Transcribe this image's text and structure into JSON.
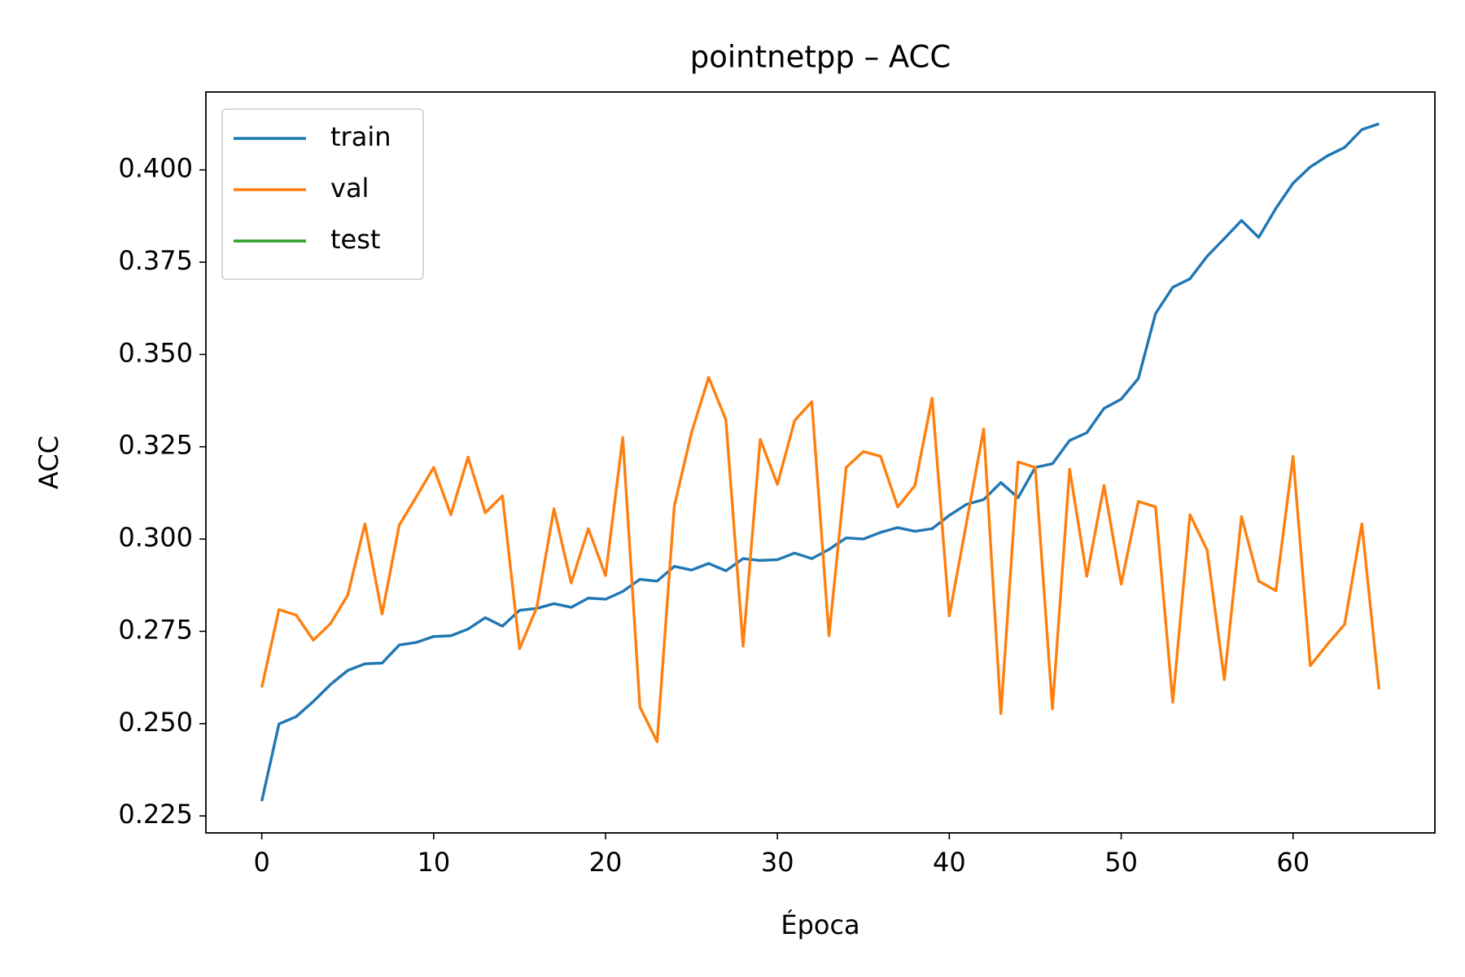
{
  "chart_data": {
    "type": "line",
    "title": "pointnetpp – ACC",
    "x_label": "Época",
    "y_label": "ACC",
    "x": [
      0,
      1,
      2,
      3,
      4,
      5,
      6,
      7,
      8,
      9,
      10,
      11,
      12,
      13,
      14,
      15,
      16,
      17,
      18,
      19,
      20,
      21,
      22,
      23,
      24,
      25,
      26,
      27,
      28,
      29,
      30,
      31,
      32,
      33,
      34,
      35,
      36,
      37,
      38,
      39,
      40,
      41,
      42,
      43,
      44,
      45,
      46,
      47,
      48,
      49,
      50,
      51,
      52,
      53,
      54,
      55,
      56,
      57,
      58,
      59,
      60,
      61,
      62,
      63,
      64,
      65
    ],
    "series": [
      {
        "name": "train",
        "color": "#1f77b4",
        "values": [
          0.229,
          0.2499,
          0.2519,
          0.256,
          0.2606,
          0.2644,
          0.2662,
          0.2664,
          0.2713,
          0.272,
          0.2736,
          0.2738,
          0.2756,
          0.2787,
          0.2764,
          0.2807,
          0.2812,
          0.2825,
          0.2815,
          0.284,
          0.2837,
          0.2858,
          0.2891,
          0.2886,
          0.2926,
          0.2916,
          0.2934,
          0.2914,
          0.2947,
          0.2942,
          0.2944,
          0.2962,
          0.2947,
          0.2972,
          0.3003,
          0.3,
          0.3018,
          0.3031,
          0.3021,
          0.3028,
          0.3064,
          0.3094,
          0.3107,
          0.3153,
          0.3112,
          0.3194,
          0.3204,
          0.3267,
          0.3288,
          0.3354,
          0.3379,
          0.3435,
          0.3611,
          0.3682,
          0.3705,
          0.3766,
          0.3814,
          0.3863,
          0.3817,
          0.3896,
          0.3964,
          0.4008,
          0.4038,
          0.4061,
          0.4109,
          0.4125
        ]
      },
      {
        "name": "val",
        "color": "#ff7f0e",
        "values": [
          0.2598,
          0.2809,
          0.2794,
          0.2726,
          0.2771,
          0.2848,
          0.3041,
          0.2797,
          0.3038,
          0.3115,
          0.3194,
          0.3066,
          0.3222,
          0.3071,
          0.3117,
          0.2703,
          0.2815,
          0.3082,
          0.2881,
          0.3028,
          0.2901,
          0.3275,
          0.2545,
          0.2451,
          0.3089,
          0.3288,
          0.3438,
          0.3323,
          0.271,
          0.327,
          0.3148,
          0.3321,
          0.3372,
          0.2738,
          0.3194,
          0.3237,
          0.3224,
          0.3087,
          0.3145,
          0.3382,
          0.2792,
          0.3044,
          0.3298,
          0.2527,
          0.3209,
          0.3194,
          0.254,
          0.3189,
          0.2899,
          0.3145,
          0.2878,
          0.3102,
          0.3087,
          0.2558,
          0.3066,
          0.297,
          0.2619,
          0.3061,
          0.2886,
          0.286,
          0.3224,
          0.2657,
          0.2715,
          0.2769,
          0.3041,
          0.2593
        ]
      },
      {
        "name": "test",
        "color": "#2ca02c",
        "values": [
          null,
          null,
          null,
          null,
          null,
          null,
          null,
          null,
          null,
          null,
          null,
          null,
          null,
          null,
          null,
          null,
          null,
          null,
          null,
          null,
          null,
          null,
          null,
          null,
          null,
          null,
          null,
          null,
          null,
          null,
          null,
          null,
          null,
          null,
          null,
          null,
          null,
          null,
          null,
          null,
          null,
          null,
          null,
          null,
          null,
          null,
          null,
          null,
          null,
          null,
          null,
          null,
          null,
          null,
          null,
          null,
          null,
          null,
          null,
          null,
          null,
          null,
          null,
          null,
          null,
          null
        ]
      }
    ],
    "xlim": [
      -3.25,
      68.25
    ],
    "xticks": [
      0,
      10,
      20,
      30,
      40,
      50,
      60
    ],
    "ylim": [
      0.2204,
      0.4211
    ],
    "yticks": [
      0.225,
      {
        "value": 0.25,
        "label": "0.250"
      },
      0.275,
      {
        "value": 0.3,
        "label": "0.300"
      },
      0.325,
      {
        "value": 0.35,
        "label": "0.350"
      },
      0.375,
      {
        "value": 0.4,
        "label": "0.400"
      }
    ],
    "grid": false,
    "legend": "upper left"
  }
}
